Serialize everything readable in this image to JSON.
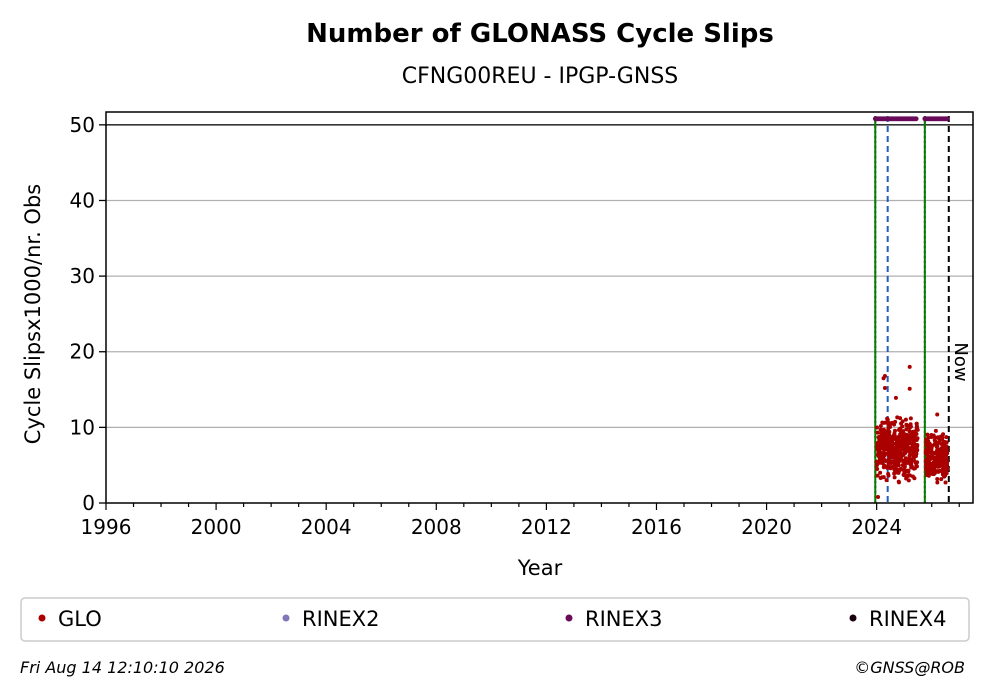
{
  "chart_data": {
    "type": "scatter",
    "title": "Number of GLONASS Cycle Slips",
    "subtitle": "CFNG00REU - IPGP-GNSS",
    "xlabel": "Year",
    "ylabel": "Cycle Slipsx1000/nr. Obs",
    "xlim": [
      1996,
      2027.5
    ],
    "ylim": [
      0,
      51.7
    ],
    "xticks": [
      1996,
      2000,
      2004,
      2008,
      2012,
      2016,
      2020,
      2024
    ],
    "yticks": [
      0,
      10,
      20,
      30,
      40,
      50
    ],
    "grid": "horizontal",
    "legend_position": "bottom",
    "now_label": "Now",
    "reference_line_y": 50,
    "vertical_lines": [
      {
        "x": 2023.95,
        "style": "dotted",
        "color": "#cc0000"
      },
      {
        "x": 2023.95,
        "style": "solid",
        "color": "#008000"
      },
      {
        "x": 2024.4,
        "style": "dashed",
        "color": "#1f5fbf"
      },
      {
        "x": 2025.75,
        "style": "dotted",
        "color": "#cc0000"
      },
      {
        "x": 2025.75,
        "style": "solid",
        "color": "#008000"
      },
      {
        "x": 2026.62,
        "style": "dashed",
        "color": "#000000"
      }
    ],
    "series": [
      {
        "name": "GLO",
        "color": "#aa0000",
        "segments": [
          {
            "x_start": 2024.0,
            "x_end": 2025.5,
            "typical_low": 2,
            "typical_high": 11,
            "peak": 18
          },
          {
            "x_start": 2025.78,
            "x_end": 2026.58,
            "typical_low": 1.5,
            "typical_high": 9,
            "peak": 12
          }
        ],
        "outliers": [
          {
            "x": 2024.25,
            "y": 16.5
          },
          {
            "x": 2024.3,
            "y": 16.8
          },
          {
            "x": 2024.3,
            "y": 15.2
          },
          {
            "x": 2025.2,
            "y": 18
          },
          {
            "x": 2025.2,
            "y": 15.1
          },
          {
            "x": 2024.7,
            "y": 13.9
          },
          {
            "x": 2026.2,
            "y": 11.7
          },
          {
            "x": 2024.05,
            "y": 0.8
          }
        ]
      },
      {
        "name": "RINEX2",
        "color": "#8078b8",
        "points": []
      },
      {
        "name": "RINEX3",
        "color": "#6a0a5a",
        "y": 50.8,
        "ranges": [
          [
            2023.95,
            2025.45
          ],
          [
            2025.75,
            2026.6
          ]
        ]
      },
      {
        "name": "RINEX4",
        "color": "#1a0010",
        "points": []
      }
    ]
  },
  "footer": {
    "timestamp": "Fri Aug 14 12:10:10 2026",
    "credit": "©GNSS@ROB"
  }
}
